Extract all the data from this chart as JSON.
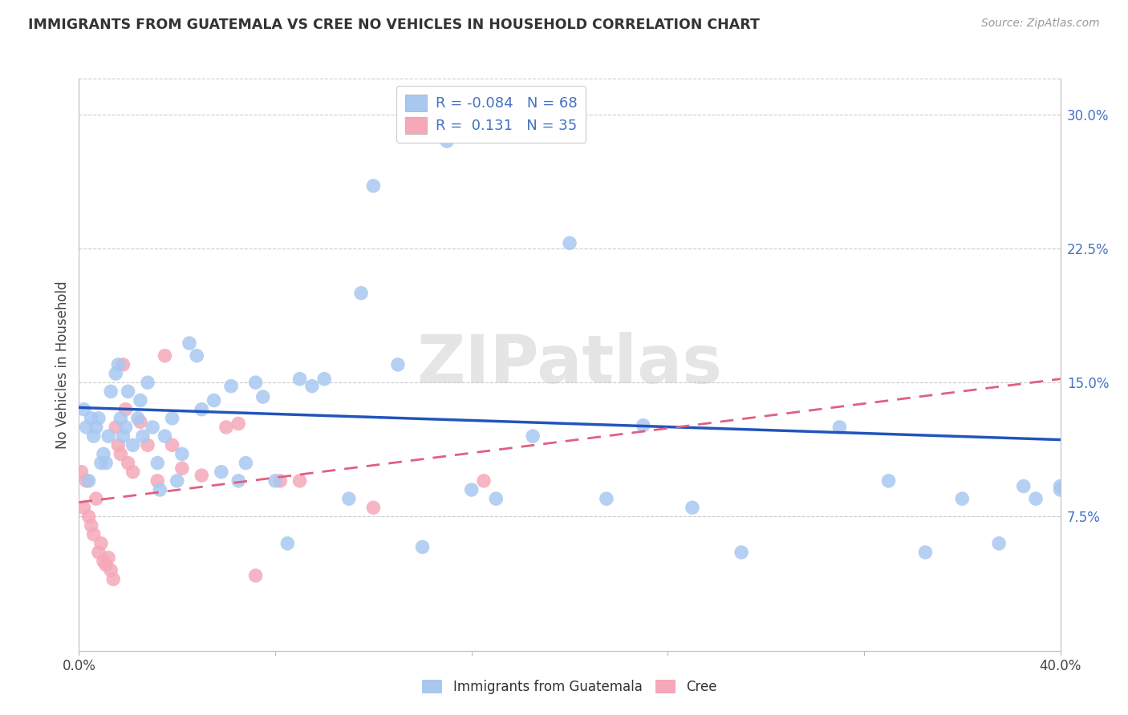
{
  "title": "IMMIGRANTS FROM GUATEMALA VS CREE NO VEHICLES IN HOUSEHOLD CORRELATION CHART",
  "source": "Source: ZipAtlas.com",
  "ylabel": "No Vehicles in Household",
  "xlim": [
    0.0,
    0.4
  ],
  "ylim": [
    0.0,
    0.32
  ],
  "xtick_positions": [
    0.0,
    0.08,
    0.16,
    0.24,
    0.32,
    0.4
  ],
  "xticklabels": [
    "0.0%",
    "",
    "",
    "",
    "",
    "40.0%"
  ],
  "yticks_right": [
    0.075,
    0.15,
    0.225,
    0.3
  ],
  "ytick_right_labels": [
    "7.5%",
    "15.0%",
    "22.5%",
    "30.0%"
  ],
  "legend1_label": "Immigrants from Guatemala",
  "legend2_label": "Cree",
  "r1": "-0.084",
  "n1": "68",
  "r2": "0.131",
  "n2": "35",
  "color_blue": "#A8C8F0",
  "color_pink": "#F5A8B8",
  "color_blue_line": "#2255BB",
  "color_pink_line": "#E06080",
  "blue_line_x": [
    0.0,
    0.4
  ],
  "blue_line_y": [
    0.136,
    0.118
  ],
  "pink_line_x": [
    0.0,
    0.4
  ],
  "pink_line_y": [
    0.083,
    0.152
  ],
  "blue_scatter_x": [
    0.002,
    0.003,
    0.004,
    0.005,
    0.006,
    0.007,
    0.008,
    0.009,
    0.01,
    0.011,
    0.012,
    0.013,
    0.015,
    0.016,
    0.017,
    0.018,
    0.019,
    0.02,
    0.022,
    0.024,
    0.025,
    0.026,
    0.028,
    0.03,
    0.032,
    0.033,
    0.035,
    0.038,
    0.04,
    0.042,
    0.045,
    0.048,
    0.05,
    0.055,
    0.058,
    0.062,
    0.065,
    0.068,
    0.072,
    0.075,
    0.08,
    0.085,
    0.09,
    0.095,
    0.1,
    0.11,
    0.115,
    0.12,
    0.13,
    0.14,
    0.15,
    0.16,
    0.17,
    0.185,
    0.2,
    0.215,
    0.23,
    0.25,
    0.27,
    0.31,
    0.33,
    0.345,
    0.36,
    0.375,
    0.385,
    0.39,
    0.4,
    0.4
  ],
  "blue_scatter_y": [
    0.135,
    0.125,
    0.095,
    0.13,
    0.12,
    0.125,
    0.13,
    0.105,
    0.11,
    0.105,
    0.12,
    0.145,
    0.155,
    0.16,
    0.13,
    0.12,
    0.125,
    0.145,
    0.115,
    0.13,
    0.14,
    0.12,
    0.15,
    0.125,
    0.105,
    0.09,
    0.12,
    0.13,
    0.095,
    0.11,
    0.172,
    0.165,
    0.135,
    0.14,
    0.1,
    0.148,
    0.095,
    0.105,
    0.15,
    0.142,
    0.095,
    0.06,
    0.152,
    0.148,
    0.152,
    0.085,
    0.2,
    0.26,
    0.16,
    0.058,
    0.285,
    0.09,
    0.085,
    0.12,
    0.228,
    0.085,
    0.126,
    0.08,
    0.055,
    0.125,
    0.095,
    0.055,
    0.085,
    0.06,
    0.092,
    0.085,
    0.09,
    0.092
  ],
  "pink_scatter_x": [
    0.001,
    0.002,
    0.003,
    0.004,
    0.005,
    0.006,
    0.007,
    0.008,
    0.009,
    0.01,
    0.011,
    0.012,
    0.013,
    0.014,
    0.015,
    0.016,
    0.017,
    0.018,
    0.019,
    0.02,
    0.022,
    0.025,
    0.028,
    0.032,
    0.035,
    0.038,
    0.042,
    0.05,
    0.06,
    0.065,
    0.072,
    0.082,
    0.09,
    0.12,
    0.165
  ],
  "pink_scatter_y": [
    0.1,
    0.08,
    0.095,
    0.075,
    0.07,
    0.065,
    0.085,
    0.055,
    0.06,
    0.05,
    0.048,
    0.052,
    0.045,
    0.04,
    0.125,
    0.115,
    0.11,
    0.16,
    0.135,
    0.105,
    0.1,
    0.128,
    0.115,
    0.095,
    0.165,
    0.115,
    0.102,
    0.098,
    0.125,
    0.127,
    0.042,
    0.095,
    0.095,
    0.08,
    0.095
  ],
  "watermark": "ZIPatlas",
  "background_color": "#FFFFFF",
  "grid_color": "#CCCCCC"
}
